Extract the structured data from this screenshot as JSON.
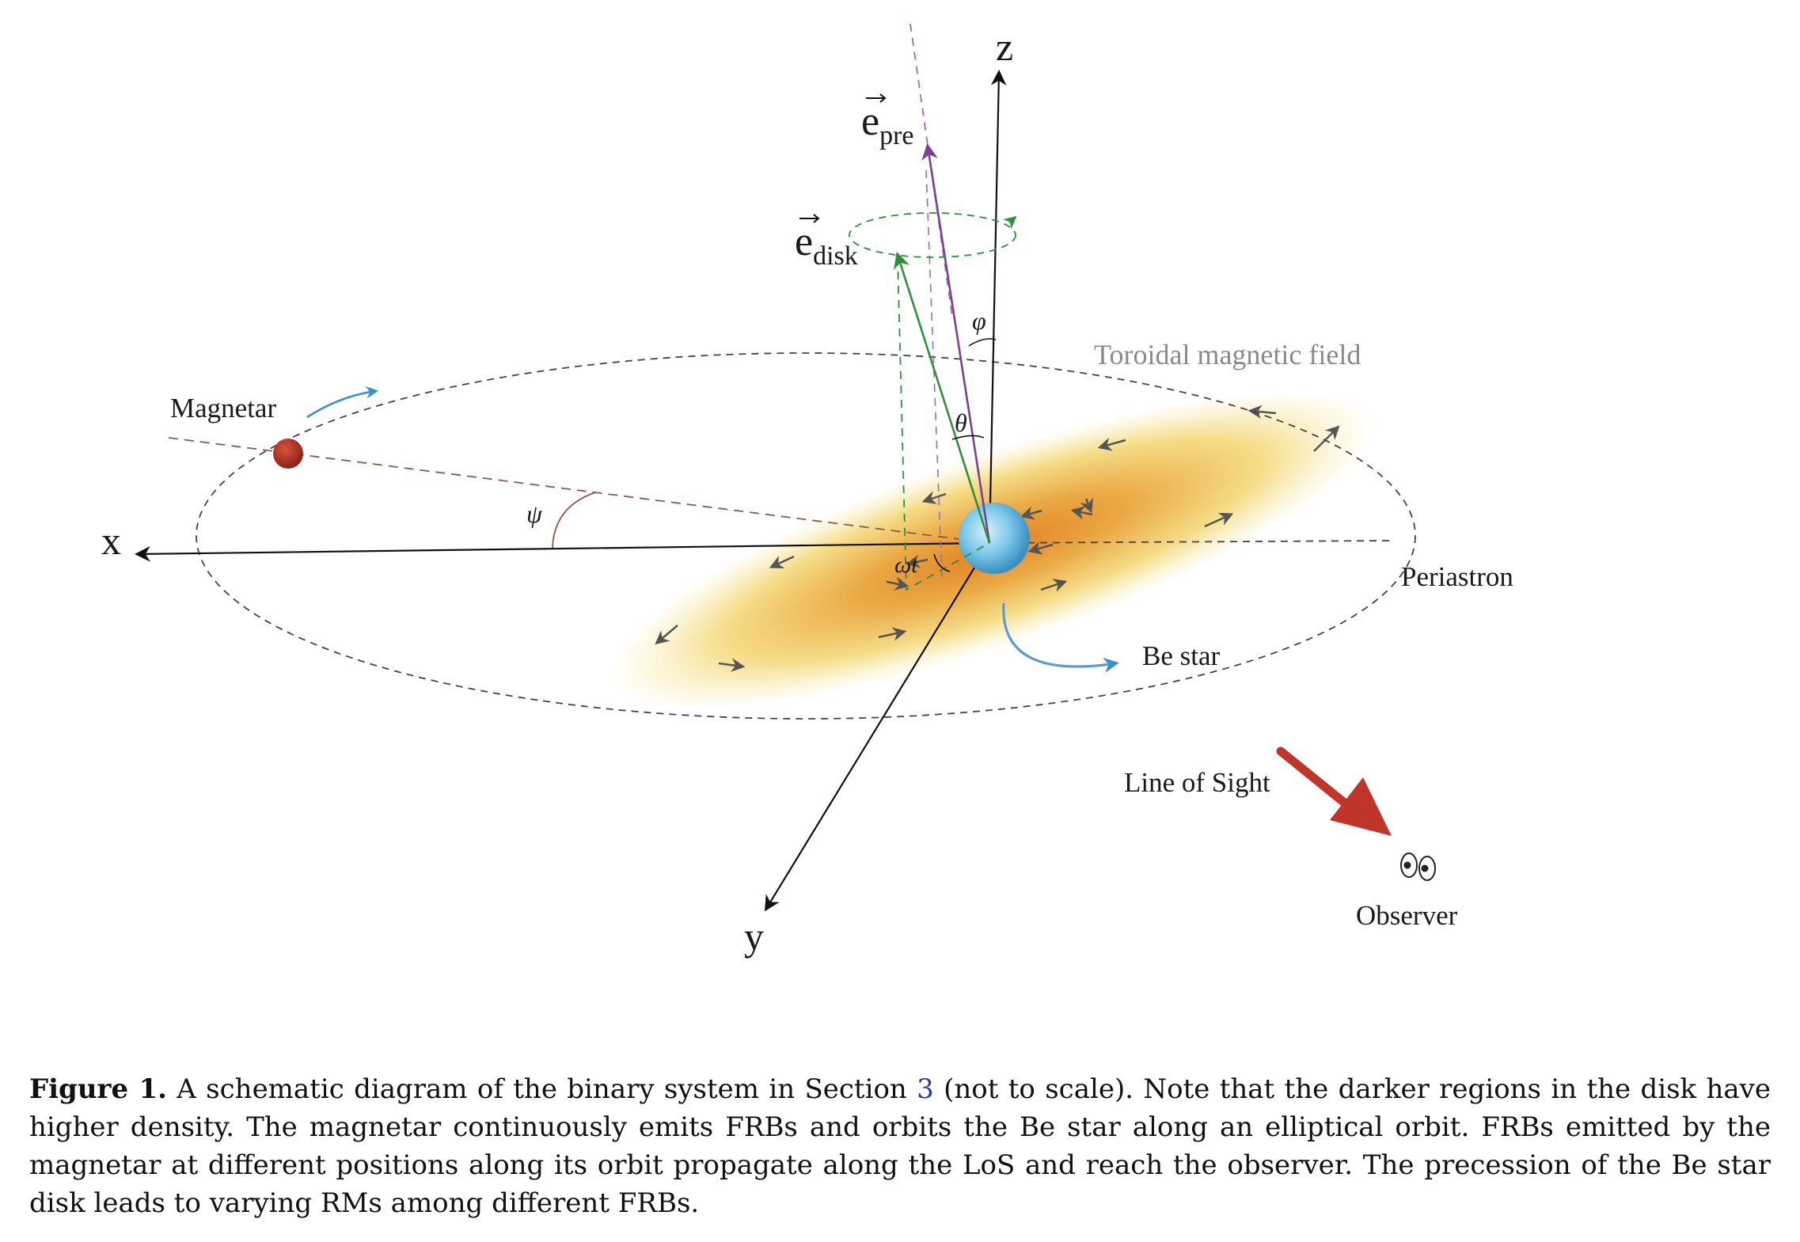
{
  "labels": {
    "z_axis": "z",
    "x_axis": "x",
    "y_axis": "y",
    "e_pre_vec": "e",
    "e_pre_sub": "pre",
    "e_disk_vec": "e",
    "e_disk_sub": "disk",
    "phi": "φ",
    "theta": "θ",
    "psi": "ψ",
    "omega_t": "ωt",
    "toroidal": "Toroidal magnetic field",
    "magnetar": "Magnetar",
    "periastron": "Periastron",
    "be_star": "Be star",
    "line_of_sight": "Line of Sight",
    "observer": "Observer"
  },
  "caption": {
    "label": "Figure 1.",
    "text_before_ref": " A schematic diagram of the binary system in Section ",
    "ref": "3",
    "text_after_ref": " (not to scale). Note that the darker regions in the disk have higher density. The magnetar continuously emits FRBs and orbits the Be star along an elliptical orbit. FRBs emitted by the magnetar at different positions along its orbit propagate along the LoS and reach the observer. The precession of the Be star disk leads to varying RMs among different FRBs."
  },
  "colors": {
    "e_pre": "#7b3f98",
    "e_disk": "#2f8f3a",
    "orbit": "#444444",
    "magnetar": "#b03020",
    "motion_arrow": "#3a8fd0",
    "los_arrow": "#c0342a",
    "toroidal_text": "#8a8a8a"
  },
  "icons": {
    "observer": "eyes-icon",
    "magnetar": "red-dot-icon",
    "be_star": "blue-sphere-icon"
  }
}
